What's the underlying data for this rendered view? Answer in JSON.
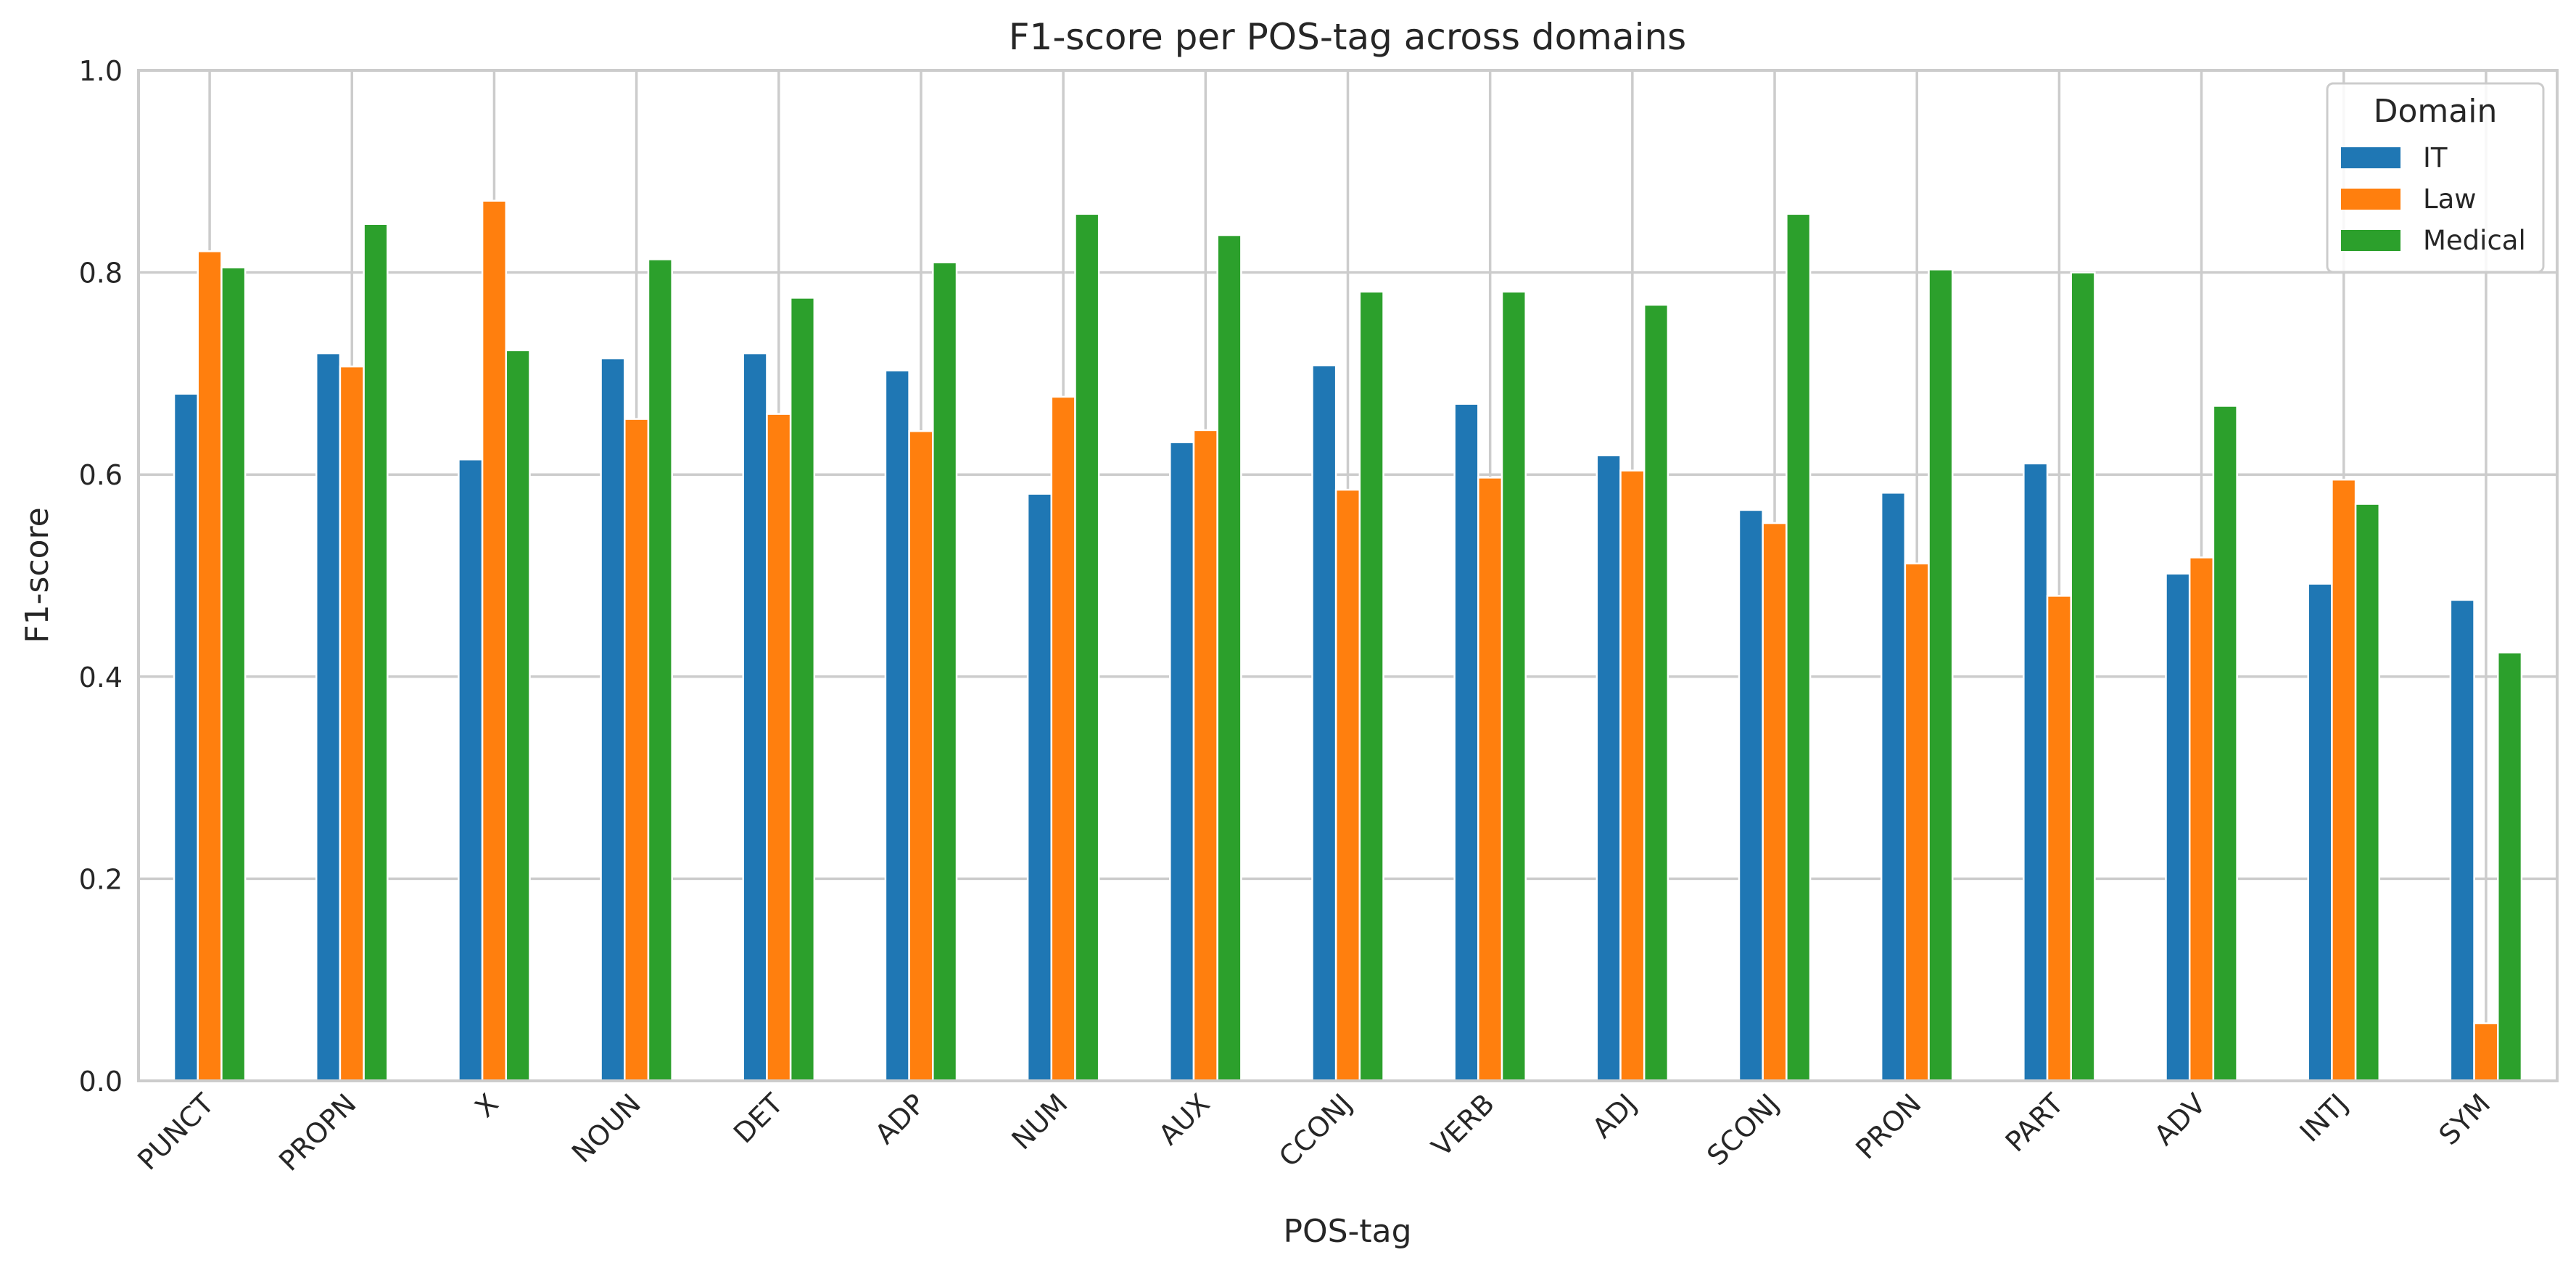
{
  "chart_data": {
    "type": "bar",
    "title": "F1-score per POS-tag across domains",
    "xlabel": "POS-tag",
    "ylabel": "F1-score",
    "ylim": [
      0,
      1
    ],
    "yticks": [
      "0.0",
      "0.2",
      "0.4",
      "0.6",
      "0.8",
      "1.0"
    ],
    "grid": true,
    "legend_title": "Domain",
    "legend_position": "top-right",
    "categories": [
      "PUNCT",
      "PROPN",
      "X",
      "NOUN",
      "DET",
      "ADP",
      "NUM",
      "AUX",
      "CCONJ",
      "VERB",
      "ADJ",
      "SCONJ",
      "PRON",
      "PART",
      "ADV",
      "INTJ",
      "SYM"
    ],
    "series": [
      {
        "name": "IT",
        "color": "#1f77b4",
        "values": [
          0.68,
          0.72,
          0.615,
          0.715,
          0.72,
          0.703,
          0.581,
          0.632,
          0.708,
          0.67,
          0.619,
          0.565,
          0.582,
          0.611,
          0.502,
          0.492,
          0.476
        ]
      },
      {
        "name": "Law",
        "color": "#ff7f0e",
        "values": [
          0.821,
          0.707,
          0.871,
          0.655,
          0.66,
          0.643,
          0.677,
          0.644,
          0.585,
          0.597,
          0.604,
          0.552,
          0.512,
          0.48,
          0.518,
          0.595,
          0.057
        ]
      },
      {
        "name": "Medical",
        "color": "#2ca02c",
        "values": [
          0.805,
          0.848,
          0.723,
          0.813,
          0.775,
          0.81,
          0.858,
          0.837,
          0.781,
          0.781,
          0.768,
          0.858,
          0.803,
          0.8,
          0.668,
          0.571,
          0.424
        ]
      }
    ]
  }
}
